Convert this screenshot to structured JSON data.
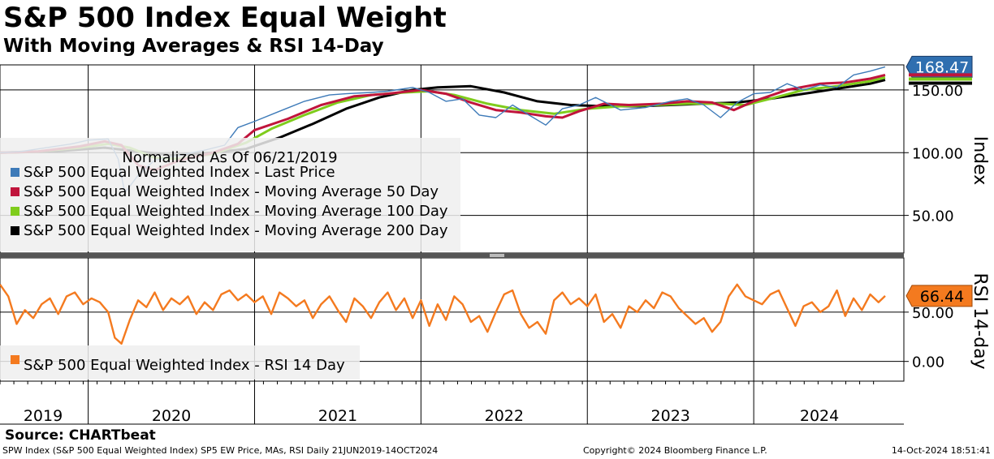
{
  "header": {
    "title": "S&P 500 Index Equal Weight",
    "subtitle": "With Moving Averages & RSI 14-Day"
  },
  "footer": {
    "source": "Source: CHARTbeat",
    "left": "SPW Index (S&P 500 Equal Weighted Index) SP5 EW Price, MAs, RSI  Daily 21JUN2019-14OCT2024",
    "center": "Copyright© 2024 Bloomberg Finance L.P.",
    "right": "14-Oct-2024 18:51:41"
  },
  "colors": {
    "price": "#3d7ab8",
    "ma50": "#c0143c",
    "ma100": "#7fcc1c",
    "ma200": "#000000",
    "rsi": "#f47a1f",
    "price_tag": "#2f6fb0",
    "rsi_tag": "#f47a1f",
    "legend_bg": "#eeeeee"
  },
  "chart_data": [
    {
      "type": "line",
      "title": "S&P 500 Index Equal Weight",
      "ylabel": "Index",
      "ylim": [
        20,
        170
      ],
      "yticks": [
        "150.00",
        "100.00",
        "50.00"
      ],
      "ytick_values": [
        150,
        100,
        50
      ],
      "x_categories": [
        "2019",
        "2020",
        "2021",
        "2022",
        "2023",
        "2024"
      ],
      "x_range": [
        2019.47,
        2024.79
      ],
      "grid": true,
      "legend_title": "Normalized As Of 06/21/2019",
      "legend_position": "left",
      "last_value_label": "168.47",
      "series": [
        {
          "name": "S&P 500 Equal Weighted Index - Last Price",
          "key": "price",
          "points": [
            [
              2019.47,
              100
            ],
            [
              2019.6,
              101
            ],
            [
              2019.75,
              104
            ],
            [
              2019.9,
              107
            ],
            [
              2020.0,
              110
            ],
            [
              2020.12,
              111
            ],
            [
              2020.18,
              95
            ],
            [
              2020.22,
              68
            ],
            [
              2020.3,
              82
            ],
            [
              2020.4,
              94
            ],
            [
              2020.55,
              98
            ],
            [
              2020.7,
              102
            ],
            [
              2020.82,
              106
            ],
            [
              2020.9,
              120
            ],
            [
              2021.0,
              125
            ],
            [
              2021.15,
              133
            ],
            [
              2021.3,
              141
            ],
            [
              2021.45,
              146
            ],
            [
              2021.55,
              147
            ],
            [
              2021.7,
              148
            ],
            [
              2021.8,
              149
            ],
            [
              2021.95,
              152
            ],
            [
              2022.05,
              148
            ],
            [
              2022.15,
              141
            ],
            [
              2022.25,
              143
            ],
            [
              2022.35,
              130
            ],
            [
              2022.45,
              128
            ],
            [
              2022.55,
              138
            ],
            [
              2022.65,
              130
            ],
            [
              2022.75,
              122
            ],
            [
              2022.85,
              135
            ],
            [
              2022.95,
              138
            ],
            [
              2023.05,
              144
            ],
            [
              2023.2,
              134
            ],
            [
              2023.35,
              136
            ],
            [
              2023.5,
              141
            ],
            [
              2023.6,
              143
            ],
            [
              2023.7,
              138
            ],
            [
              2023.8,
              128
            ],
            [
              2023.9,
              140
            ],
            [
              2024.0,
              147
            ],
            [
              2024.1,
              148
            ],
            [
              2024.2,
              155
            ],
            [
              2024.3,
              150
            ],
            [
              2024.4,
              154
            ],
            [
              2024.5,
              152
            ],
            [
              2024.6,
              162
            ],
            [
              2024.7,
              165
            ],
            [
              2024.79,
              168.47
            ]
          ]
        },
        {
          "name": "S&P 500 Equal Weighted Index - Moving Average 50 Day",
          "key": "ma50",
          "points": [
            [
              2019.47,
              100
            ],
            [
              2019.7,
              101
            ],
            [
              2019.95,
              105
            ],
            [
              2020.1,
              109
            ],
            [
              2020.2,
              106
            ],
            [
              2020.3,
              90
            ],
            [
              2020.4,
              86
            ],
            [
              2020.55,
              94
            ],
            [
              2020.75,
              100
            ],
            [
              2020.9,
              107
            ],
            [
              2021.0,
              118
            ],
            [
              2021.2,
              127
            ],
            [
              2021.4,
              138
            ],
            [
              2021.6,
              145
            ],
            [
              2021.8,
              147
            ],
            [
              2022.0,
              150
            ],
            [
              2022.15,
              147
            ],
            [
              2022.3,
              140
            ],
            [
              2022.45,
              134
            ],
            [
              2022.6,
              132
            ],
            [
              2022.75,
              129
            ],
            [
              2022.85,
              128
            ],
            [
              2022.95,
              133
            ],
            [
              2023.1,
              139
            ],
            [
              2023.25,
              138
            ],
            [
              2023.45,
              139
            ],
            [
              2023.6,
              141
            ],
            [
              2023.75,
              140
            ],
            [
              2023.88,
              134
            ],
            [
              2024.0,
              141
            ],
            [
              2024.2,
              150
            ],
            [
              2024.4,
              155
            ],
            [
              2024.55,
              156
            ],
            [
              2024.7,
              159
            ],
            [
              2024.79,
              162
            ]
          ]
        },
        {
          "name": "S&P 500 Equal Weighted Index - Moving Average 100 Day",
          "key": "ma100",
          "points": [
            [
              2019.47,
              100
            ],
            [
              2019.7,
              101
            ],
            [
              2019.95,
              104
            ],
            [
              2020.12,
              107
            ],
            [
              2020.25,
              104
            ],
            [
              2020.4,
              96
            ],
            [
              2020.55,
              95
            ],
            [
              2020.75,
              99
            ],
            [
              2020.95,
              108
            ],
            [
              2021.1,
              119
            ],
            [
              2021.3,
              130
            ],
            [
              2021.5,
              140
            ],
            [
              2021.7,
              146
            ],
            [
              2021.9,
              148
            ],
            [
              2022.05,
              149
            ],
            [
              2022.2,
              146
            ],
            [
              2022.4,
              139
            ],
            [
              2022.6,
              134
            ],
            [
              2022.8,
              131
            ],
            [
              2023.0,
              135
            ],
            [
              2023.2,
              137
            ],
            [
              2023.4,
              138
            ],
            [
              2023.6,
              139
            ],
            [
              2023.8,
              139
            ],
            [
              2023.95,
              138
            ],
            [
              2024.1,
              143
            ],
            [
              2024.3,
              150
            ],
            [
              2024.5,
              153
            ],
            [
              2024.7,
              157
            ],
            [
              2024.79,
              160
            ]
          ]
        },
        {
          "name": "S&P 500 Equal Weighted Index - Moving Average 200 Day",
          "key": "ma200",
          "points": [
            [
              2019.47,
              100
            ],
            [
              2019.8,
              101
            ],
            [
              2020.1,
              104
            ],
            [
              2020.3,
              101
            ],
            [
              2020.5,
              98
            ],
            [
              2020.75,
              100
            ],
            [
              2020.95,
              103
            ],
            [
              2021.15,
              112
            ],
            [
              2021.35,
              123
            ],
            [
              2021.55,
              135
            ],
            [
              2021.75,
              144
            ],
            [
              2021.95,
              150
            ],
            [
              2022.1,
              152
            ],
            [
              2022.3,
              153
            ],
            [
              2022.5,
              148
            ],
            [
              2022.7,
              141
            ],
            [
              2022.9,
              138
            ],
            [
              2023.1,
              137
            ],
            [
              2023.3,
              137
            ],
            [
              2023.5,
              138
            ],
            [
              2023.7,
              139
            ],
            [
              2023.9,
              140
            ],
            [
              2024.1,
              143
            ],
            [
              2024.3,
              147
            ],
            [
              2024.5,
              151
            ],
            [
              2024.7,
              155
            ],
            [
              2024.79,
              158
            ]
          ]
        }
      ]
    },
    {
      "type": "line",
      "title": "RSI 14-day",
      "ylabel": "RSI 14-day",
      "ylim": [
        -20,
        105
      ],
      "yticks": [
        "50.00",
        "0.00"
      ],
      "ytick_values": [
        50,
        0
      ],
      "x_categories": [
        "2019",
        "2020",
        "2021",
        "2022",
        "2023",
        "2024"
      ],
      "grid": true,
      "legend_position": "bottom-left",
      "last_value_label": "66.44",
      "series": [
        {
          "name": "S&P 500 Equal Weighted Index - RSI 14 Day",
          "key": "rsi",
          "points": [
            [
              2019.47,
              78
            ],
            [
              2019.52,
              66
            ],
            [
              2019.57,
              38
            ],
            [
              2019.62,
              52
            ],
            [
              2019.67,
              44
            ],
            [
              2019.72,
              58
            ],
            [
              2019.77,
              64
            ],
            [
              2019.82,
              48
            ],
            [
              2019.87,
              66
            ],
            [
              2019.92,
              70
            ],
            [
              2019.97,
              58
            ],
            [
              2020.02,
              64
            ],
            [
              2020.07,
              60
            ],
            [
              2020.12,
              50
            ],
            [
              2020.16,
              24
            ],
            [
              2020.2,
              18
            ],
            [
              2020.25,
              42
            ],
            [
              2020.3,
              62
            ],
            [
              2020.35,
              55
            ],
            [
              2020.4,
              70
            ],
            [
              2020.45,
              52
            ],
            [
              2020.5,
              64
            ],
            [
              2020.55,
              58
            ],
            [
              2020.6,
              66
            ],
            [
              2020.65,
              48
            ],
            [
              2020.7,
              60
            ],
            [
              2020.75,
              52
            ],
            [
              2020.8,
              68
            ],
            [
              2020.85,
              72
            ],
            [
              2020.9,
              62
            ],
            [
              2020.95,
              68
            ],
            [
              2021.0,
              60
            ],
            [
              2021.05,
              66
            ],
            [
              2021.1,
              48
            ],
            [
              2021.15,
              70
            ],
            [
              2021.2,
              64
            ],
            [
              2021.25,
              56
            ],
            [
              2021.3,
              62
            ],
            [
              2021.35,
              44
            ],
            [
              2021.4,
              58
            ],
            [
              2021.45,
              66
            ],
            [
              2021.5,
              52
            ],
            [
              2021.55,
              40
            ],
            [
              2021.6,
              64
            ],
            [
              2021.65,
              56
            ],
            [
              2021.7,
              44
            ],
            [
              2021.75,
              60
            ],
            [
              2021.8,
              70
            ],
            [
              2021.85,
              52
            ],
            [
              2021.9,
              64
            ],
            [
              2021.95,
              44
            ],
            [
              2022.0,
              62
            ],
            [
              2022.05,
              36
            ],
            [
              2022.1,
              58
            ],
            [
              2022.15,
              42
            ],
            [
              2022.2,
              66
            ],
            [
              2022.25,
              58
            ],
            [
              2022.3,
              40
            ],
            [
              2022.35,
              46
            ],
            [
              2022.4,
              30
            ],
            [
              2022.45,
              50
            ],
            [
              2022.5,
              68
            ],
            [
              2022.55,
              72
            ],
            [
              2022.6,
              48
            ],
            [
              2022.65,
              34
            ],
            [
              2022.7,
              40
            ],
            [
              2022.75,
              28
            ],
            [
              2022.8,
              62
            ],
            [
              2022.85,
              70
            ],
            [
              2022.9,
              58
            ],
            [
              2022.95,
              64
            ],
            [
              2023.0,
              56
            ],
            [
              2023.05,
              68
            ],
            [
              2023.1,
              40
            ],
            [
              2023.15,
              48
            ],
            [
              2023.2,
              34
            ],
            [
              2023.25,
              56
            ],
            [
              2023.3,
              50
            ],
            [
              2023.35,
              62
            ],
            [
              2023.4,
              54
            ],
            [
              2023.45,
              70
            ],
            [
              2023.5,
              66
            ],
            [
              2023.55,
              54
            ],
            [
              2023.6,
              46
            ],
            [
              2023.65,
              38
            ],
            [
              2023.7,
              44
            ],
            [
              2023.75,
              30
            ],
            [
              2023.8,
              40
            ],
            [
              2023.85,
              66
            ],
            [
              2023.9,
              78
            ],
            [
              2023.95,
              66
            ],
            [
              2024.0,
              62
            ],
            [
              2024.05,
              58
            ],
            [
              2024.1,
              68
            ],
            [
              2024.15,
              72
            ],
            [
              2024.2,
              54
            ],
            [
              2024.25,
              36
            ],
            [
              2024.3,
              56
            ],
            [
              2024.35,
              60
            ],
            [
              2024.4,
              50
            ],
            [
              2024.45,
              56
            ],
            [
              2024.5,
              72
            ],
            [
              2024.55,
              46
            ],
            [
              2024.6,
              64
            ],
            [
              2024.65,
              52
            ],
            [
              2024.7,
              68
            ],
            [
              2024.75,
              60
            ],
            [
              2024.79,
              66.44
            ]
          ]
        }
      ]
    }
  ]
}
